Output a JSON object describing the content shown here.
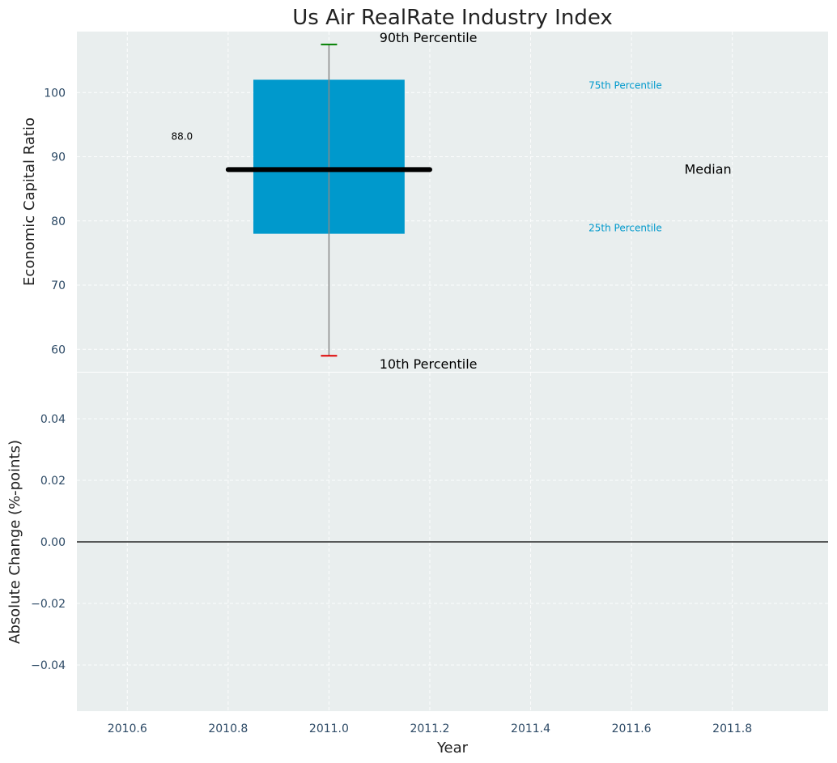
{
  "chart_data": [
    {
      "type": "box",
      "title": "Us Air RealRate Industry Index",
      "ylabel": "Economic Capital Ratio",
      "xlabel": "",
      "xlim": [
        2010.5,
        2011.99
      ],
      "ylim": [
        56.5,
        109.5
      ],
      "yticks": [
        60,
        70,
        80,
        90,
        100
      ],
      "ytick_labels": [
        "60",
        "70",
        "80",
        "90",
        "100"
      ],
      "grid": true,
      "box": {
        "x": 2011.0,
        "width": 0.3,
        "p10": 59,
        "p25": 78,
        "median": 88,
        "p75": 102,
        "p90": 107.5,
        "median_line_x": [
          2010.8,
          2011.2
        ],
        "color": "#0099cc"
      },
      "annotations": {
        "p90_label": "90th Percentile",
        "p10_label": "10th Percentile",
        "p75_label": "75th Percentile",
        "p25_label": "25th Percentile",
        "median_label": "Median",
        "median_value_label": "88.0"
      }
    },
    {
      "type": "line",
      "title": "",
      "ylabel": "Absolute Change (%-points)",
      "xlabel": "Year",
      "xlim": [
        2010.5,
        2011.99
      ],
      "ylim": [
        -0.055,
        0.055
      ],
      "yticks": [
        -0.04,
        -0.02,
        0.0,
        0.02,
        0.04
      ],
      "ytick_labels": [
        "−0.04",
        "−0.02",
        "0.00",
        "0.02",
        "0.04"
      ],
      "xticks": [
        2010.6,
        2010.8,
        2011.0,
        2011.2,
        2011.4,
        2011.6,
        2011.8
      ],
      "xtick_labels": [
        "2010.6",
        "2010.8",
        "2011.0",
        "2011.2",
        "2011.4",
        "2011.6",
        "2011.8"
      ],
      "reference_line_y": 0,
      "series": [],
      "grid": true
    }
  ],
  "colors": {
    "background": "#e9eeee",
    "box": "#0099cc",
    "median": "#000000",
    "whisker_top": "#008000",
    "whisker_bottom": "#e00000",
    "whisker": "#888888",
    "quartile_text": "#0099cc"
  }
}
